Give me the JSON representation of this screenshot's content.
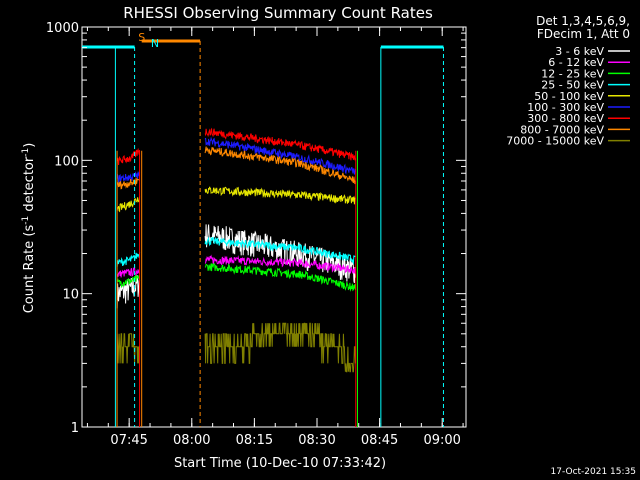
{
  "chart_data": {
    "type": "line",
    "title": "RHESSI Observing Summary Count Rates",
    "xlabel": "Start Time (10-Dec-10 07:33:42)",
    "ylabel_main": "Count Rate (s",
    "ylabel_sup1": "-1",
    "ylabel_mid": " detector",
    "ylabel_sup2": "-1",
    "ylabel_end": ")",
    "yscale": "log",
    "ylim": [
      1,
      1000
    ],
    "xlim_minutes": [
      0,
      92
    ],
    "x_ticks": [
      {
        "min": 11.3,
        "label": "07:45"
      },
      {
        "min": 26.3,
        "label": "08:00"
      },
      {
        "min": 41.3,
        "label": "08:15"
      },
      {
        "min": 56.3,
        "label": "08:30"
      },
      {
        "min": 71.3,
        "label": "08:45"
      },
      {
        "min": 86.3,
        "label": "09:00"
      }
    ],
    "y_ticks": [
      {
        "value": 1,
        "label": "1"
      },
      {
        "value": 10,
        "label": "10"
      },
      {
        "value": 100,
        "label": "100"
      },
      {
        "value": 1000,
        "label": "1000"
      }
    ],
    "legend_header": [
      "Det 1,3,4,5,6,9,",
      "FDecim 1, Att 0"
    ],
    "series": [
      {
        "name": "3 - 6 keV",
        "color": "#ffffff",
        "seg1": [
          10,
          11,
          12
        ],
        "seg2": [
          28,
          20,
          15
        ]
      },
      {
        "name": "6 - 12 keV",
        "color": "#ff00ff",
        "seg1": [
          14,
          14.5,
          15
        ],
        "seg2": [
          18,
          17,
          15
        ]
      },
      {
        "name": "12 - 25 keV",
        "color": "#00ff00",
        "seg1": [
          12,
          12.5,
          13
        ],
        "seg2": [
          16,
          14,
          11
        ]
      },
      {
        "name": "25 - 50 keV",
        "color": "#00ffff",
        "seg1": [
          17,
          18,
          20
        ],
        "seg2": [
          25,
          22,
          18
        ]
      },
      {
        "name": "50 - 100 keV",
        "color": "#e6e600",
        "seg1": [
          43,
          48,
          53
        ],
        "seg2": [
          60,
          55,
          50
        ]
      },
      {
        "name": "100 - 300 keV",
        "color": "#1c1cff",
        "seg1": [
          73,
          75,
          78
        ],
        "seg2": [
          140,
          105,
          82
        ]
      },
      {
        "name": "300 - 800 keV",
        "color": "#ff0000",
        "seg1": [
          98,
          105,
          118
        ],
        "seg2": [
          165,
          130,
          105
        ]
      },
      {
        "name": "800 - 7000 keV",
        "color": "#ff8800",
        "seg1": [
          65,
          68,
          72
        ],
        "seg2": [
          120,
          95,
          70
        ]
      },
      {
        "name": "7000 - 15000 keV",
        "color": "#808000",
        "seg1": [
          4,
          4,
          4
        ],
        "seg2": [
          3.5,
          5.5,
          3
        ]
      }
    ],
    "flags": [
      {
        "label": "S",
        "color": "#ff8800",
        "minute": 14.3
      },
      {
        "label": "N",
        "color": "#00ffff",
        "minute": 17.5
      }
    ],
    "timestamp": "17-Oct-2021 15:35"
  }
}
